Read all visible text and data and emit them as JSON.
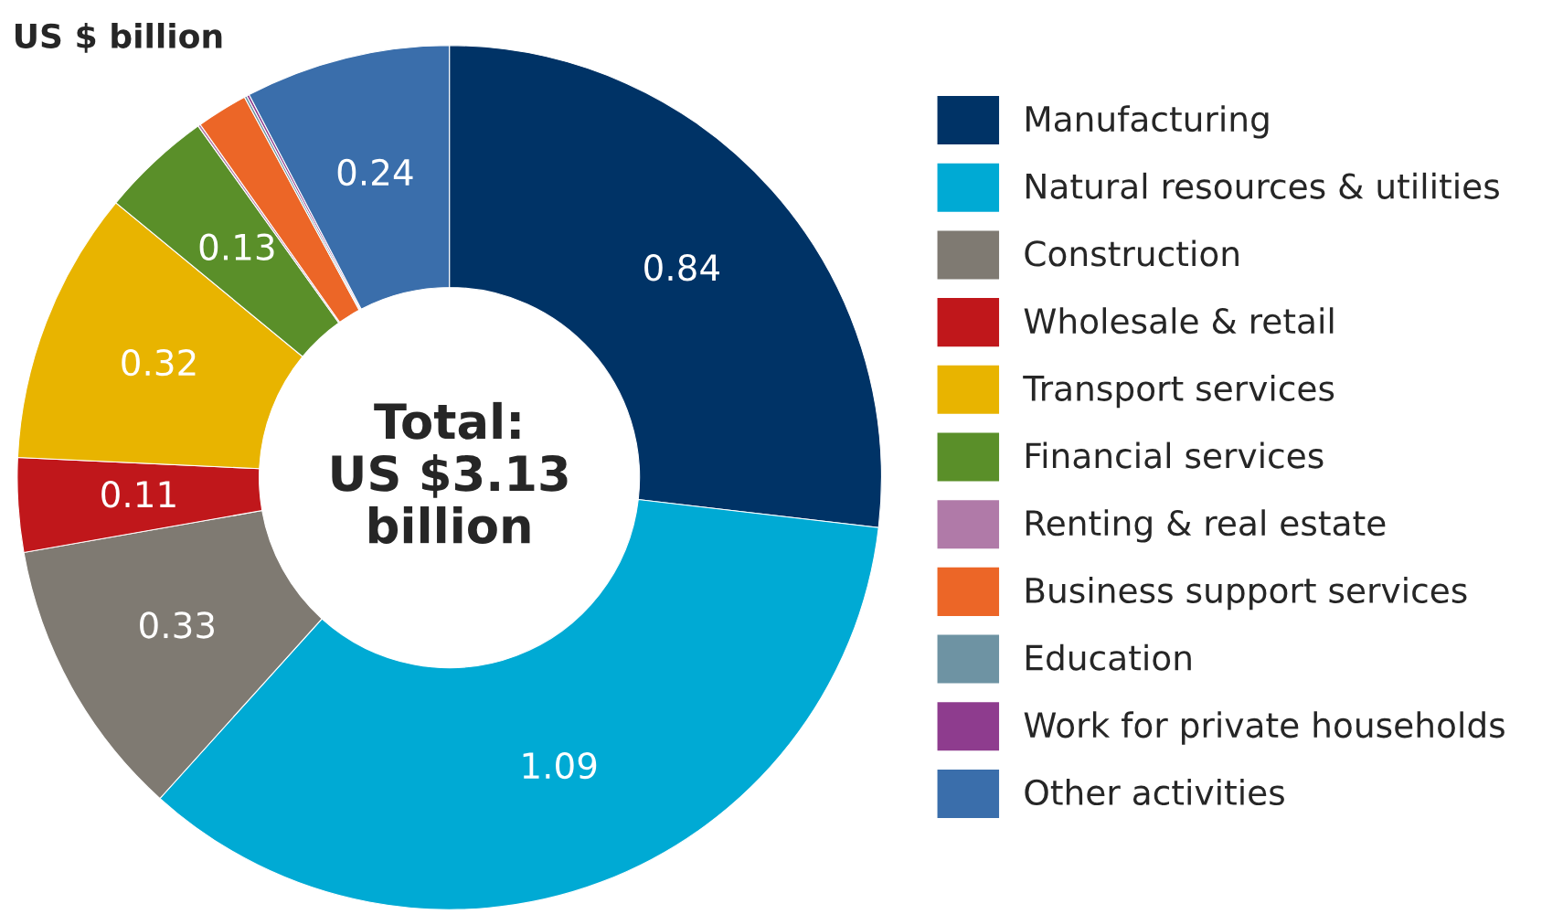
{
  "chart_data": {
    "type": "donut",
    "title": "US $ billion",
    "categories": [
      "Manufacturing",
      "Natural resources & utilities",
      "Construction",
      "Wholesale & retail",
      "Transport services",
      "Financial services",
      "Renting & real estate",
      "Business support services",
      "Education",
      "Work for private households",
      "Other activities"
    ],
    "values": [
      0.84,
      1.09,
      0.33,
      0.11,
      0.32,
      0.13,
      0.003,
      0.06,
      0.003,
      0.003,
      0.24
    ],
    "colors": [
      "#003366",
      "#00aad4",
      "#7f7a72",
      "#c0171b",
      "#e8b400",
      "#5a8f29",
      "#b07aa8",
      "#ec6627",
      "#6e93a3",
      "#8e3c8e",
      "#3a6eab"
    ],
    "value_labels": [
      "0.84",
      "1.09",
      "0.33",
      "0.11",
      "0.32",
      "0.13",
      null,
      null,
      null,
      null,
      "0.24"
    ],
    "annotations": [
      "Total:\nUS $3.13\nbillion"
    ],
    "legend": "right"
  }
}
